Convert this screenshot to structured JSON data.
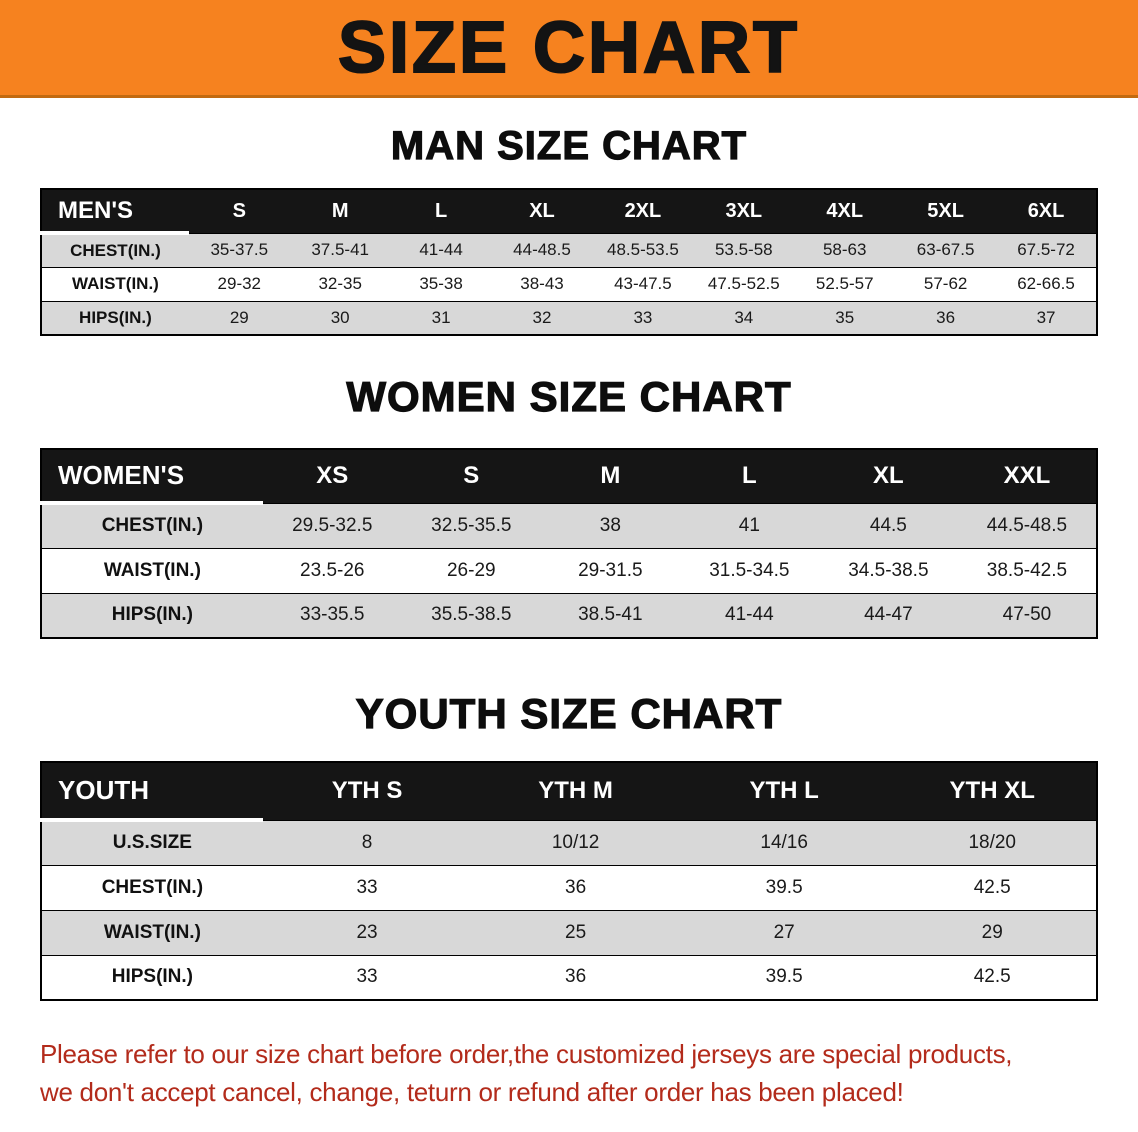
{
  "banner": {
    "title": "SIZE CHART",
    "bg_color": "#F6821F"
  },
  "sections": [
    {
      "id": "men",
      "heading": "MAN SIZE CHART",
      "table": {
        "header": [
          "MEN'S",
          "S",
          "M",
          "L",
          "XL",
          "2XL",
          "3XL",
          "4XL",
          "5XL",
          "6XL"
        ],
        "rows": [
          {
            "label": "CHEST(IN.)",
            "values": [
              "35-37.5",
              "37.5-41",
              "41-44",
              "44-48.5",
              "48.5-53.5",
              "53.5-58",
              "58-63",
              "63-67.5",
              "67.5-72"
            ]
          },
          {
            "label": "WAIST(IN.)",
            "values": [
              "29-32",
              "32-35",
              "35-38",
              "38-43",
              "43-47.5",
              "47.5-52.5",
              "52.5-57",
              "57-62",
              "62-66.5"
            ]
          },
          {
            "label": "HIPS(IN.)",
            "values": [
              "29",
              "30",
              "31",
              "32",
              "33",
              "34",
              "35",
              "36",
              "37"
            ]
          }
        ]
      }
    },
    {
      "id": "women",
      "heading": "WOMEN SIZE CHART",
      "table": {
        "header": [
          "WOMEN'S",
          "XS",
          "S",
          "M",
          "L",
          "XL",
          "XXL"
        ],
        "rows": [
          {
            "label": "CHEST(IN.)",
            "values": [
              "29.5-32.5",
              "32.5-35.5",
              "38",
              "41",
              "44.5",
              "44.5-48.5"
            ]
          },
          {
            "label": "WAIST(IN.)",
            "values": [
              "23.5-26",
              "26-29",
              "29-31.5",
              "31.5-34.5",
              "34.5-38.5",
              "38.5-42.5"
            ]
          },
          {
            "label": "HIPS(IN.)",
            "values": [
              "33-35.5",
              "35.5-38.5",
              "38.5-41",
              "41-44",
              "44-47",
              "47-50"
            ]
          }
        ]
      }
    },
    {
      "id": "youth",
      "heading": "YOUTH SIZE CHART",
      "table": {
        "header": [
          "YOUTH",
          "YTH S",
          "YTH M",
          "YTH L",
          "YTH XL"
        ],
        "rows": [
          {
            "label": "U.S.SIZE",
            "values": [
              "8",
              "10/12",
              "14/16",
              "18/20"
            ]
          },
          {
            "label": "CHEST(IN.)",
            "values": [
              "33",
              "36",
              "39.5",
              "42.5"
            ]
          },
          {
            "label": "WAIST(IN.)",
            "values": [
              "23",
              "25",
              "27",
              "29"
            ]
          },
          {
            "label": "HIPS(IN.)",
            "values": [
              "33",
              "36",
              "39.5",
              "42.5"
            ]
          }
        ]
      }
    }
  ],
  "disclaimer": {
    "line1": "Please refer to our size chart before order,the customized jerseys are special products,",
    "line2": "we don't accept cancel, change, teturn or refund after order has been placed!",
    "color": "#B32B1B"
  }
}
